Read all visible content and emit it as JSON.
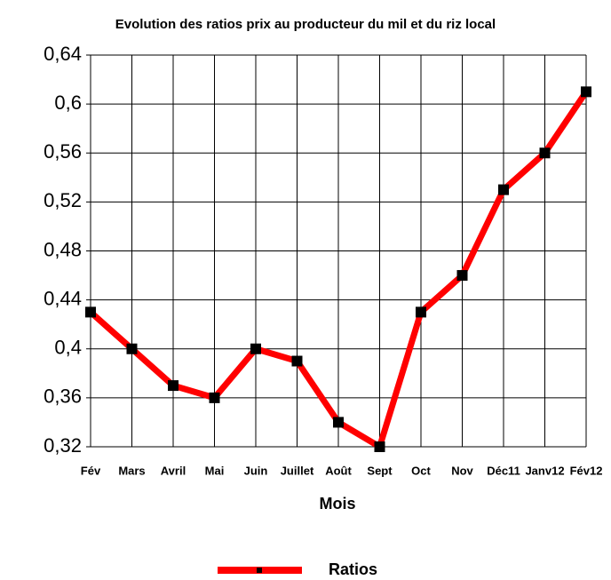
{
  "chart_data": {
    "type": "line",
    "title": "Evolution des ratios prix au producteur du mil et du riz local",
    "x_label": "Mois",
    "categories": [
      "Fév",
      "Mars",
      "Avril",
      "Mai",
      "Juin",
      "Juillet",
      "Août",
      "Sept",
      "Oct",
      "Nov",
      "Déc11",
      "Janv12",
      "Fév12"
    ],
    "series": [
      {
        "name": "Ratios",
        "color": "#ff0000",
        "marker_color": "#000000",
        "values": [
          0.43,
          0.4,
          0.37,
          0.36,
          0.4,
          0.39,
          0.34,
          0.32,
          0.43,
          0.46,
          0.53,
          0.56,
          0.61
        ]
      }
    ],
    "ylim": [
      0.32,
      0.64
    ],
    "yticks": [
      {
        "value": 0.32,
        "label": "0,32"
      },
      {
        "value": 0.36,
        "label": "0,36"
      },
      {
        "value": 0.4,
        "label": "0,4"
      },
      {
        "value": 0.44,
        "label": "0,44"
      },
      {
        "value": 0.48,
        "label": "0,48"
      },
      {
        "value": 0.52,
        "label": "0,52"
      },
      {
        "value": 0.56,
        "label": "0,56"
      },
      {
        "value": 0.6,
        "label": "0,6"
      },
      {
        "value": 0.64,
        "label": "0,64"
      }
    ],
    "grid": true,
    "legend": "bottom"
  }
}
